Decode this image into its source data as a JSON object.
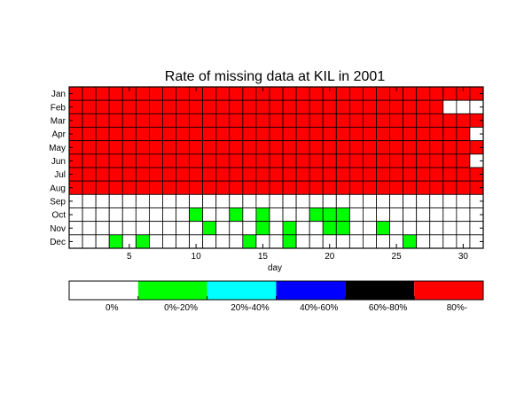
{
  "chart_data": {
    "type": "heatmap",
    "title": "Rate of missing data at KIL in 2001",
    "xlabel": "day",
    "ylabel": "",
    "x_ticks": [
      5,
      10,
      15,
      20,
      25,
      30
    ],
    "xlim": [
      1,
      31
    ],
    "months": [
      "Jan",
      "Feb",
      "Mar",
      "Apr",
      "May",
      "Jun",
      "Jul",
      "Aug",
      "Sep",
      "Oct",
      "Nov",
      "Dec"
    ],
    "days_in_month": [
      31,
      28,
      31,
      30,
      31,
      30,
      31,
      31,
      30,
      31,
      30,
      31
    ],
    "grid": true,
    "legend_position": "bottom",
    "legend": [
      {
        "label": "0%",
        "color": "#ffffff"
      },
      {
        "label": "0%-20%",
        "color": "#00ff00"
      },
      {
        "label": "20%-40%",
        "color": "#00ffff"
      },
      {
        "label": "40%-60%",
        "color": "#0000ff"
      },
      {
        "label": "60%-80%",
        "color": "#000000"
      },
      {
        "label": "80%-",
        "color": "#ff0000"
      }
    ],
    "default_category_by_month": [
      5,
      5,
      5,
      5,
      5,
      5,
      5,
      5,
      0,
      0,
      0,
      0
    ],
    "exceptions": [
      {
        "month": "Feb",
        "day": 29,
        "category": 0
      },
      {
        "month": "Feb",
        "day": 30,
        "category": 0
      },
      {
        "month": "Feb",
        "day": 31,
        "category": 0
      },
      {
        "month": "Apr",
        "day": 31,
        "category": 0
      },
      {
        "month": "Jun",
        "day": 31,
        "category": 0
      },
      {
        "month": "Oct",
        "day": 10,
        "category": 1
      },
      {
        "month": "Oct",
        "day": 13,
        "category": 1
      },
      {
        "month": "Oct",
        "day": 15,
        "category": 1
      },
      {
        "month": "Oct",
        "day": 19,
        "category": 1
      },
      {
        "month": "Oct",
        "day": 20,
        "category": 1
      },
      {
        "month": "Oct",
        "day": 21,
        "category": 1
      },
      {
        "month": "Nov",
        "day": 11,
        "category": 1
      },
      {
        "month": "Nov",
        "day": 15,
        "category": 1
      },
      {
        "month": "Nov",
        "day": 17,
        "category": 1
      },
      {
        "month": "Nov",
        "day": 20,
        "category": 1
      },
      {
        "month": "Nov",
        "day": 21,
        "category": 1
      },
      {
        "month": "Nov",
        "day": 24,
        "category": 1
      },
      {
        "month": "Dec",
        "day": 4,
        "category": 1
      },
      {
        "month": "Dec",
        "day": 6,
        "category": 1
      },
      {
        "month": "Dec",
        "day": 14,
        "category": 1
      },
      {
        "month": "Dec",
        "day": 17,
        "category": 1
      },
      {
        "month": "Dec",
        "day": 26,
        "category": 1
      }
    ]
  }
}
